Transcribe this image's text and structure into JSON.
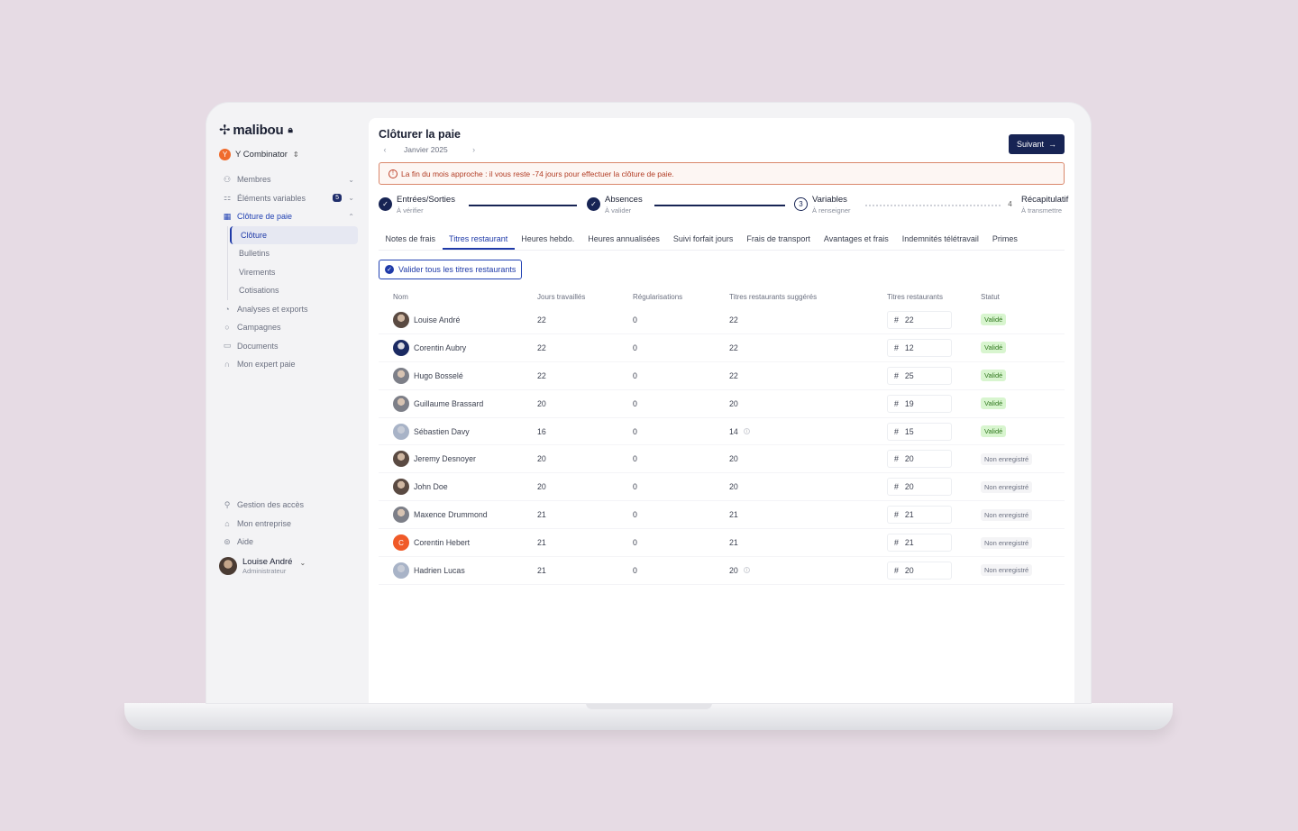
{
  "app": {
    "logo": "malibou",
    "org": "Y Combinator",
    "org_initial": "Y"
  },
  "sidebar": {
    "items": [
      {
        "label": "Membres",
        "icon": "users-icon"
      },
      {
        "label": "Éléments variables",
        "icon": "variables-icon",
        "badge": "5"
      },
      {
        "label": "Clôture de paie",
        "icon": "calendar-icon"
      },
      {
        "label": "Analyses et exports",
        "icon": "analytics-icon"
      },
      {
        "label": "Campagnes",
        "icon": "chat-icon"
      },
      {
        "label": "Documents",
        "icon": "folder-icon"
      },
      {
        "label": "Mon expert paie",
        "icon": "headset-icon"
      }
    ],
    "subitems": [
      "Clôture",
      "Bulletins",
      "Virements",
      "Cotisations"
    ],
    "bottom": [
      "Gestion des accès",
      "Mon entreprise",
      "Aide"
    ],
    "user": {
      "name": "Louise André",
      "role": "Administrateur"
    }
  },
  "header": {
    "title": "Clôturer la paie",
    "month": "Janvier 2025",
    "next_label": "Suivant"
  },
  "alert": "La fin du mois approche : il vous reste -74 jours pour effectuer la clôture de paie.",
  "steps": [
    {
      "title": "Entrées/Sorties",
      "sub": "À vérifier",
      "mark": "✓"
    },
    {
      "title": "Absences",
      "sub": "À valider",
      "mark": "✓"
    },
    {
      "title": "Variables",
      "sub": "À renseigner",
      "mark": "3"
    },
    {
      "title": "Récapitulatif",
      "sub": "À transmettre",
      "mark": "4"
    }
  ],
  "tabs": [
    "Notes de frais",
    "Titres restaurant",
    "Heures hebdo.",
    "Heures annualisées",
    "Suivi forfait jours",
    "Frais de transport",
    "Avantages et frais",
    "Indemnités télétravail",
    "Primes"
  ],
  "validate_all_label": "Valider tous les titres restaurants",
  "table": {
    "columns": [
      "Nom",
      "Jours travaillés",
      "Régularisations",
      "Titres restaurants suggérés",
      "Titres restaurants",
      "Statut"
    ],
    "rows": [
      {
        "name": "Louise André",
        "jours": "22",
        "reg": "0",
        "sugg": "22",
        "tr": "22",
        "status": "Validé"
      },
      {
        "name": "Corentin Aubry",
        "jours": "22",
        "reg": "0",
        "sugg": "22",
        "tr": "12",
        "status": "Validé"
      },
      {
        "name": "Hugo Bosselé",
        "jours": "22",
        "reg": "0",
        "sugg": "22",
        "tr": "25",
        "status": "Validé"
      },
      {
        "name": "Guillaume Brassard",
        "jours": "20",
        "reg": "0",
        "sugg": "20",
        "tr": "19",
        "status": "Validé"
      },
      {
        "name": "Sébastien Davy",
        "jours": "16",
        "reg": "0",
        "sugg": "14",
        "tr": "15",
        "status": "Validé"
      },
      {
        "name": "Jeremy Desnoyer",
        "jours": "20",
        "reg": "0",
        "sugg": "20",
        "tr": "20",
        "status": "Non enregistré"
      },
      {
        "name": "John Doe",
        "jours": "20",
        "reg": "0",
        "sugg": "20",
        "tr": "20",
        "status": "Non enregistré"
      },
      {
        "name": "Maxence Drummond",
        "jours": "21",
        "reg": "0",
        "sugg": "21",
        "tr": "21",
        "status": "Non enregistré"
      },
      {
        "name": "Corentin Hebert",
        "jours": "21",
        "reg": "0",
        "sugg": "21",
        "tr": "21",
        "status": "Non enregistré",
        "initial": "C"
      },
      {
        "name": "Hadrien Lucas",
        "jours": "21",
        "reg": "0",
        "sugg": "20",
        "tr": "20",
        "status": "Non enregistré"
      }
    ]
  }
}
